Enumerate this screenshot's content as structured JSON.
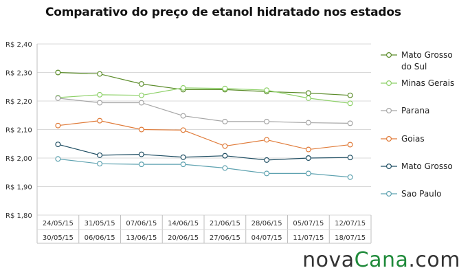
{
  "brand": {
    "part1": "nova",
    "part2": "Cana",
    "part3": ".com"
  },
  "colors": {
    "grid": "#d9d9d9",
    "axis": "#bfbfbf"
  },
  "chart_data": {
    "type": "line",
    "title": "Comparativo do preço de etanol hidratado nos estados",
    "xlabel": "",
    "ylabel": "",
    "ylim": [
      1.8,
      2.4
    ],
    "y_ticks": [
      "R$ 2,40",
      "R$ 2,30",
      "R$ 2,20",
      "R$ 2,10",
      "R$ 2,00",
      "R$ 1,90",
      "R$ 1,80"
    ],
    "y_tick_values": [
      2.4,
      2.3,
      2.2,
      2.1,
      2.0,
      1.9,
      1.8
    ],
    "categories": [
      {
        "start": "24/05/15",
        "end": "30/05/15"
      },
      {
        "start": "31/05/15",
        "end": "06/06/15"
      },
      {
        "start": "07/06/15",
        "end": "13/06/15"
      },
      {
        "start": "14/06/15",
        "end": "20/06/15"
      },
      {
        "start": "21/06/15",
        "end": "27/06/15"
      },
      {
        "start": "28/06/15",
        "end": "04/07/15"
      },
      {
        "start": "05/07/15",
        "end": "11/07/15"
      },
      {
        "start": "12/07/15",
        "end": "18/07/15"
      }
    ],
    "legend_position": "right",
    "grid": true,
    "series": [
      {
        "name": "Mato Grosso do Sul",
        "legend_lines": [
          "Mato Grosso",
          "do Sul"
        ],
        "color": "#5b8c2a",
        "values": [
          2.3,
          2.295,
          2.26,
          2.24,
          2.24,
          2.233,
          2.228,
          2.22
        ]
      },
      {
        "name": "Minas Gerais",
        "legend_lines": [
          "Minas Gerais"
        ],
        "color": "#8fd16a",
        "values": [
          2.212,
          2.222,
          2.22,
          2.246,
          2.244,
          2.238,
          2.21,
          2.192
        ]
      },
      {
        "name": "Parana",
        "legend_lines": [
          "Parana"
        ],
        "color": "#a6a6a6",
        "values": [
          2.21,
          2.194,
          2.194,
          2.148,
          2.128,
          2.128,
          2.124,
          2.122
        ]
      },
      {
        "name": "Goias",
        "legend_lines": [
          "Goias"
        ],
        "color": "#e07b39",
        "values": [
          2.114,
          2.131,
          2.1,
          2.098,
          2.042,
          2.064,
          2.03,
          2.047
        ]
      },
      {
        "name": "Mato Grosso",
        "legend_lines": [
          "Mato Grosso"
        ],
        "color": "#1f4e63",
        "values": [
          2.048,
          2.01,
          2.013,
          2.003,
          2.008,
          1.993,
          2.0,
          2.002
        ]
      },
      {
        "name": "Sao Paulo",
        "legend_lines": [
          "Sao Paulo"
        ],
        "color": "#5ea2b0",
        "values": [
          1.997,
          1.98,
          1.978,
          1.978,
          1.965,
          1.946,
          1.946,
          1.933
        ]
      }
    ]
  }
}
